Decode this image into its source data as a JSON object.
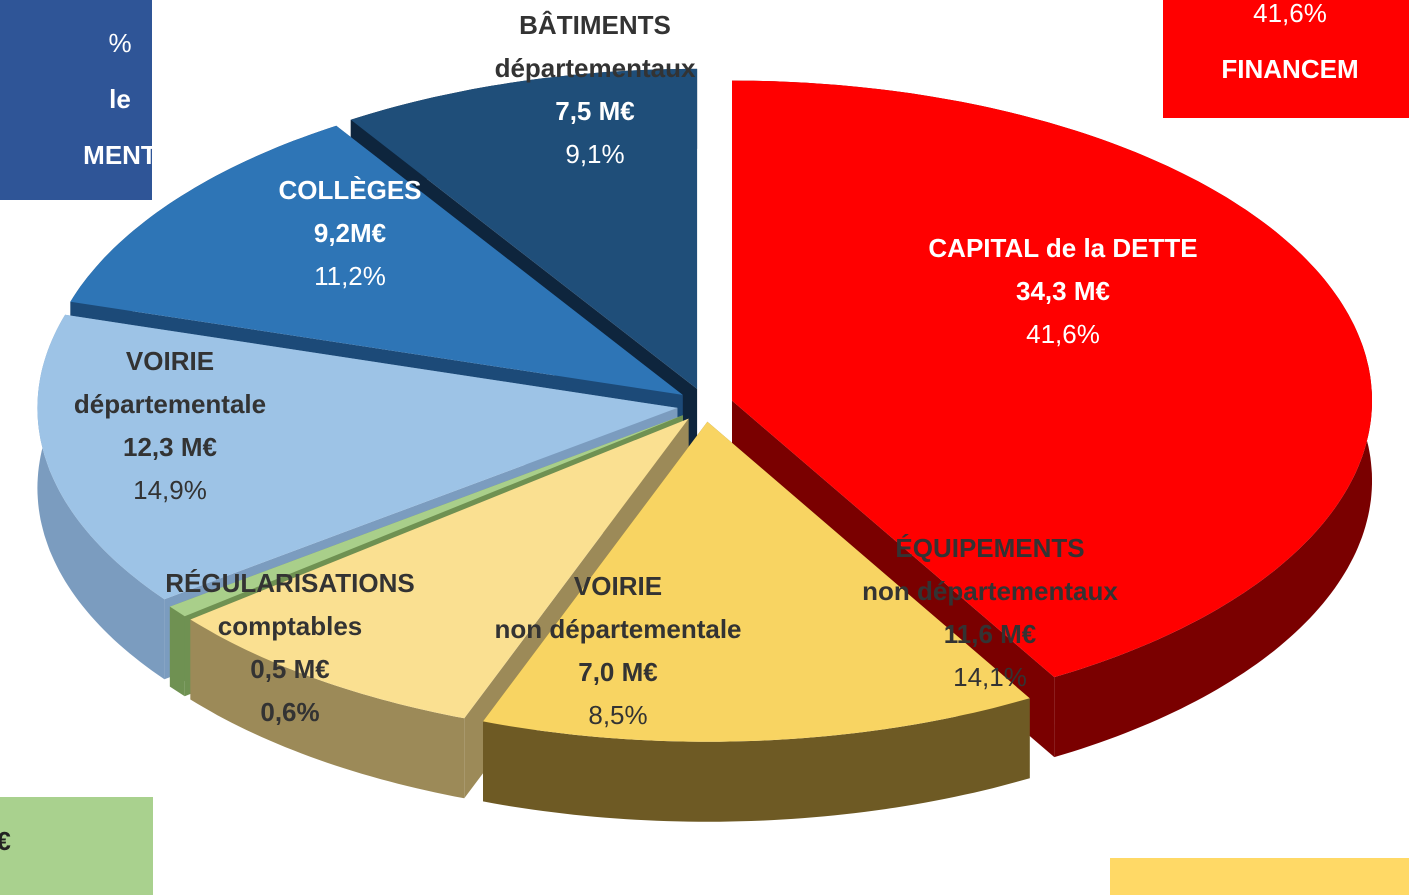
{
  "chart_data": {
    "type": "pie",
    "slices": [
      {
        "lines": [
          "CAPITAL de la DETTE"
        ],
        "amount_label": "34,3 M€",
        "color": "#ff0000",
        "side_color": "#7a0000"
      },
      {
        "lines": [
          "ÉQUIPEMENTS",
          "non départementaux"
        ],
        "amount_label": "11,6 M€",
        "color": "#f8d462",
        "side_color": "#6e5a24"
      },
      {
        "lines": [
          "VOIRIE",
          "non départementale"
        ],
        "amount_label": "7,0 M€",
        "color": "#fae091",
        "side_color": "#9c8a58"
      },
      {
        "lines": [
          "RÉGULARISATIONS",
          "comptables"
        ],
        "amount_label": "0,5 M€",
        "color": "#a9cf8a",
        "side_color": "#6f9152"
      },
      {
        "lines": [
          "VOIRIE",
          "départementale"
        ],
        "amount_label": "12,3 M€",
        "color": "#9dc3e6",
        "side_color": "#7b9cbf"
      },
      {
        "lines": [
          "COLLÈGES"
        ],
        "amount_label": "9,2M€",
        "color": "#2e75b6",
        "side_color": "#1c4a78"
      },
      {
        "lines": [
          "BÂTIMENTS",
          "départementaux"
        ],
        "amount_label": "7,5 M€",
        "color": "#1f4e79",
        "side_color": "#0e253d"
      }
    ],
    "values": [
      41.6,
      14.1,
      8.5,
      0.6,
      14.9,
      11.2,
      9.1
    ],
    "value_labels": [
      "41,6%",
      "14,1%",
      "8,5%",
      "0,6%",
      "14,9%",
      "11,2%",
      "9,1%"
    ],
    "annotations": [
      {
        "lines": [
          "%",
          "le",
          "MENT"
        ],
        "color": "#2f5597"
      },
      {
        "lines": [
          "41,6%",
          "FINANCEM"
        ],
        "color": "#ff0000"
      },
      {
        "lines": [
          "I€"
        ],
        "color": "#a9d18e"
      }
    ]
  }
}
